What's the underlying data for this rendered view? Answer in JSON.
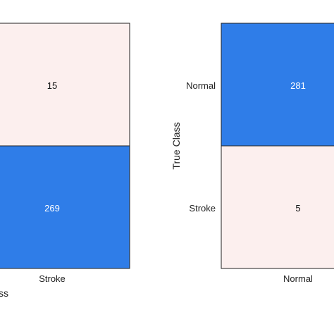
{
  "chart_data": [
    {
      "type": "heatmap",
      "row_labels": [],
      "col_labels": [
        "Stroke"
      ],
      "cells": [
        {
          "row": 0,
          "col": 0,
          "value": "15",
          "level": "low"
        },
        {
          "row": 1,
          "col": 0,
          "value": "269",
          "level": "high"
        }
      ],
      "xlabel": "ss",
      "ylabel": ""
    },
    {
      "type": "heatmap",
      "row_labels": [
        "Normal",
        "Stroke"
      ],
      "col_labels": [
        "Normal"
      ],
      "cells": [
        {
          "row": 0,
          "col": 0,
          "value": "281",
          "level": "high"
        },
        {
          "row": 1,
          "col": 0,
          "value": "5",
          "level": "low"
        }
      ],
      "xlabel": "",
      "ylabel": "True Class"
    }
  ],
  "colors": {
    "high": "#2f7de8",
    "low": "#fcefee",
    "high_text": "#ffffff",
    "low_text": "#111111",
    "border": "#222222"
  }
}
